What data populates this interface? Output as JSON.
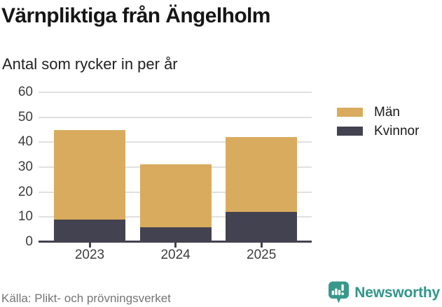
{
  "header": {
    "title": "Värnpliktiga från Ängelholm",
    "subtitle": "Antal som rycker in per år"
  },
  "footer": {
    "source": "Källa: Plikt- och prövningsverket",
    "brand_name": "Newsworthy"
  },
  "colors": {
    "man_bar": "#d9ab5e",
    "kvinnor_bar": "#434250",
    "axis": "#434250",
    "gridline": "#e0e0e0",
    "tick_text": "#3d3d3d",
    "source_text": "#757575",
    "brand_teal": "#38998b"
  },
  "icons": {
    "brand_logo": "newsworthy-speech-bubble-bar-chart-icon"
  },
  "chart_data": {
    "type": "bar",
    "stacked": true,
    "categories": [
      "2023",
      "2024",
      "2025"
    ],
    "series": [
      {
        "name": "Män",
        "color": "#d9ab5e",
        "values": [
          36,
          25,
          30
        ]
      },
      {
        "name": "Kvinnor",
        "color": "#434250",
        "values": [
          9,
          6,
          12
        ]
      }
    ],
    "stack_order_bottom_to_top": [
      "Kvinnor",
      "Män"
    ],
    "totals": [
      45,
      31,
      42
    ],
    "title": "Värnpliktiga från Ängelholm",
    "subtitle": "Antal som rycker in per år",
    "xlabel": "",
    "ylabel": "",
    "yticks": [
      0,
      10,
      20,
      30,
      40,
      50,
      60
    ],
    "ylim": [
      0,
      60
    ],
    "grid": "horizontal",
    "legend_position": "right"
  }
}
